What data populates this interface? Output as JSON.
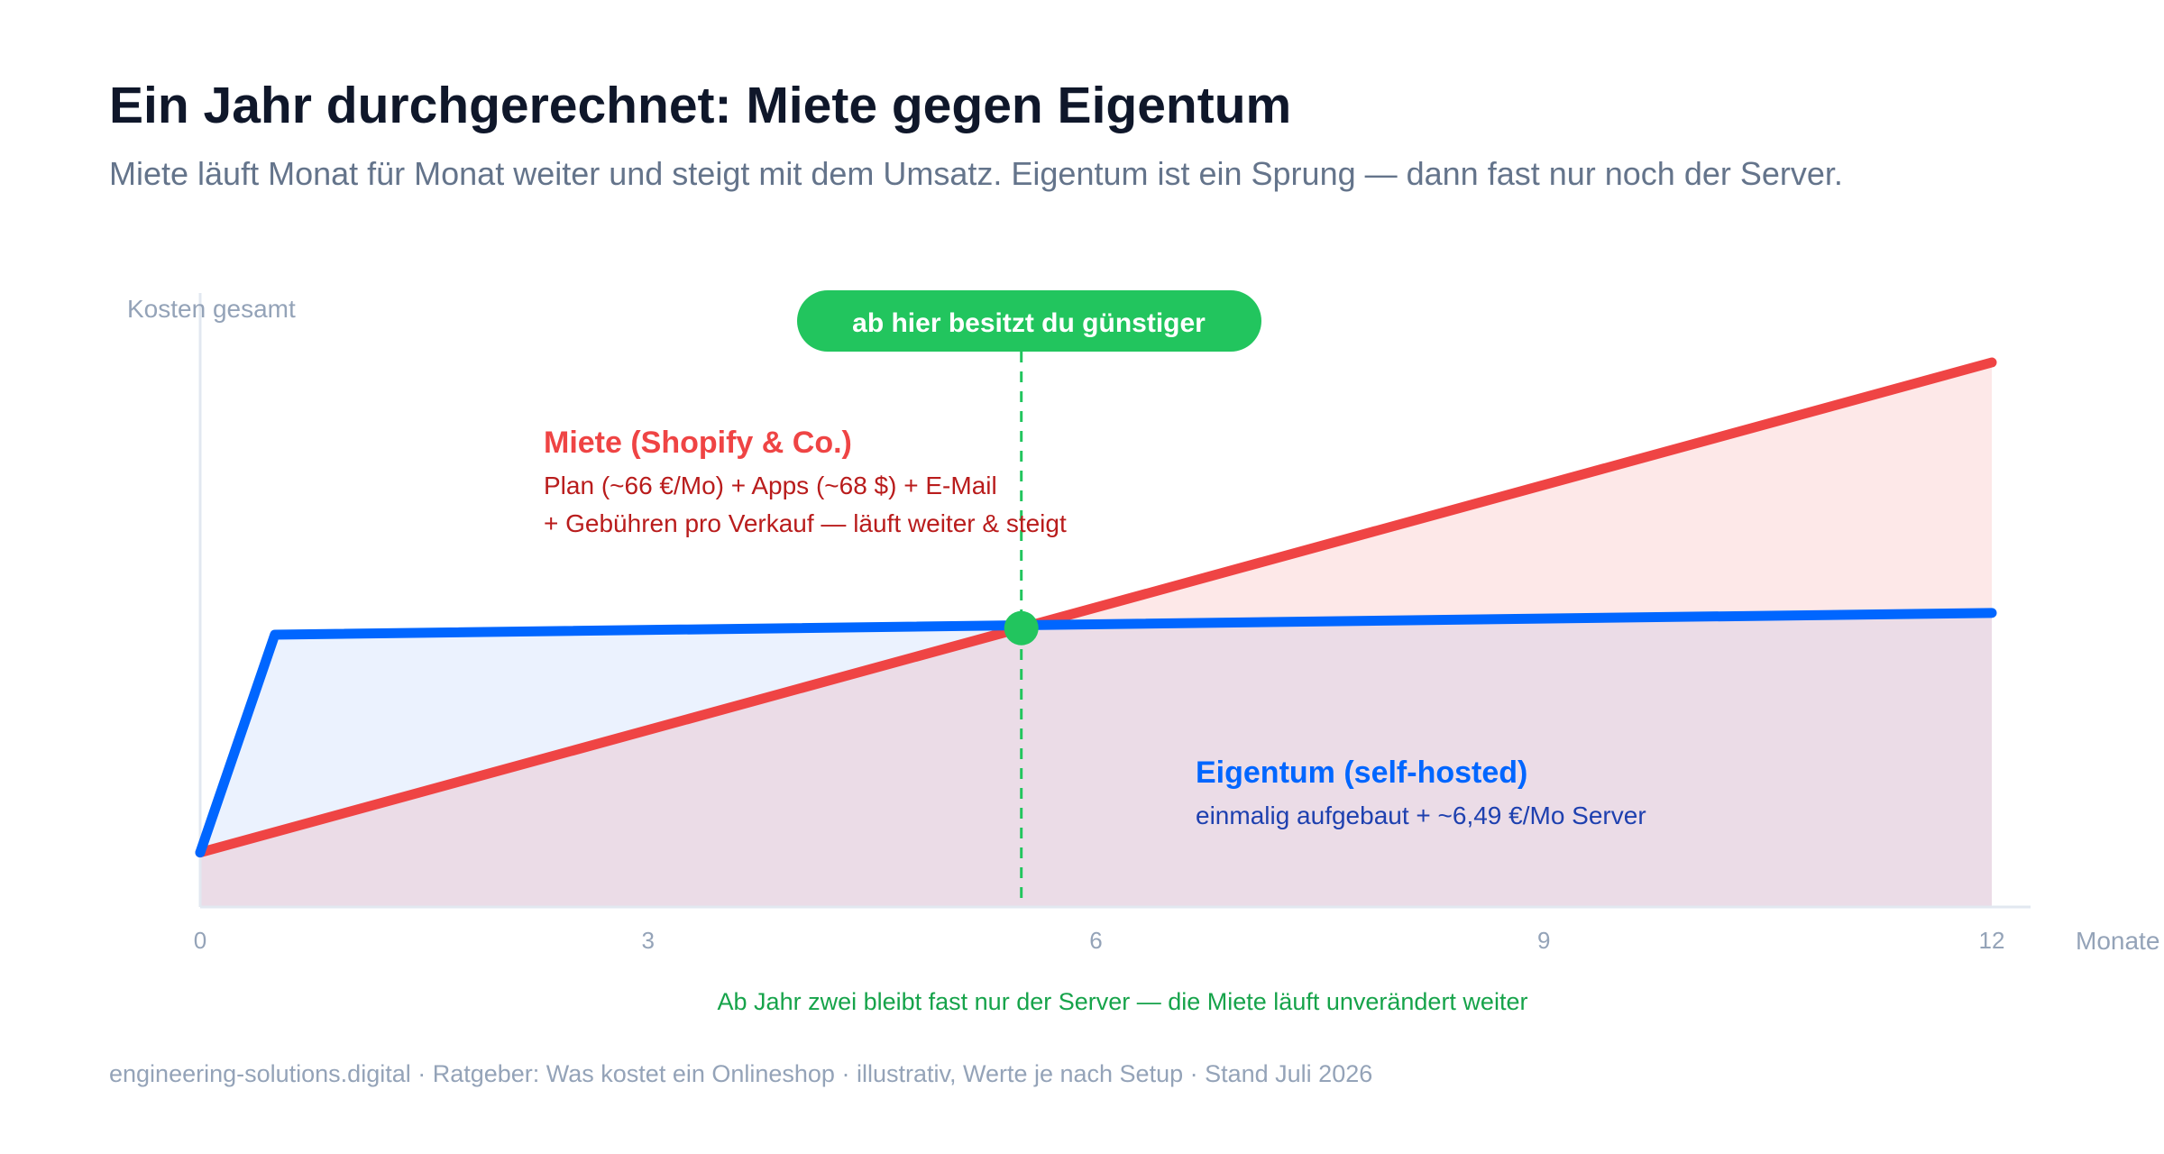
{
  "header": {
    "title": "Ein Jahr durchgerechnet: Miete gegen Eigentum",
    "subtitle": "Miete läuft Monat für Monat weiter und steigt mit dem Umsatz. Eigentum ist ein Sprung — dann fast nur noch der Server."
  },
  "footer": {
    "text": "engineering-solutions.digital · Ratgeber: Was kostet ein Onlineshop · illustrativ, Werte je nach Setup · Stand Juli 2026"
  },
  "colors": {
    "rent": "#ef4444",
    "own": "#0066ff",
    "breakeven": "#22c55e",
    "rent_text": "#b91c1c",
    "own_text": "#1e40af",
    "note": "#16a34a"
  },
  "chart_data": {
    "type": "line",
    "xlabel": "Monate",
    "ylabel": "Kosten gesamt",
    "xlim": [
      0,
      12
    ],
    "ylim": [
      0,
      100
    ],
    "x_ticks": [
      "0",
      "3",
      "6",
      "9",
      "12"
    ],
    "y_tick_labels_shown": false,
    "grid": false,
    "series": [
      {
        "name": "Miete (Shopify & Co.)",
        "key": "rent",
        "x": [
          0,
          12
        ],
        "y": [
          10,
          100
        ]
      },
      {
        "name": "Eigentum (self-hosted)",
        "key": "own",
        "x": [
          0,
          0.5,
          12
        ],
        "y": [
          10,
          50,
          54
        ]
      }
    ],
    "breakeven": {
      "x": 5.5,
      "y": 51.2
    },
    "callout": "ab hier besitzt du günstiger",
    "annotations": {
      "rent": {
        "title": "Miete (Shopify & Co.)",
        "line1": "Plan (~66 €/Mo) + Apps (~68 $) + E-Mail",
        "line2": "+ Gebühren pro Verkauf — läuft weiter & steigt"
      },
      "own": {
        "title": "Eigentum (self-hosted)",
        "line1": "einmalig aufgebaut + ~6,49 €/Mo Server"
      }
    },
    "note": "Ab Jahr zwei bleibt fast nur der Server — die Miete läuft unverändert weiter"
  }
}
